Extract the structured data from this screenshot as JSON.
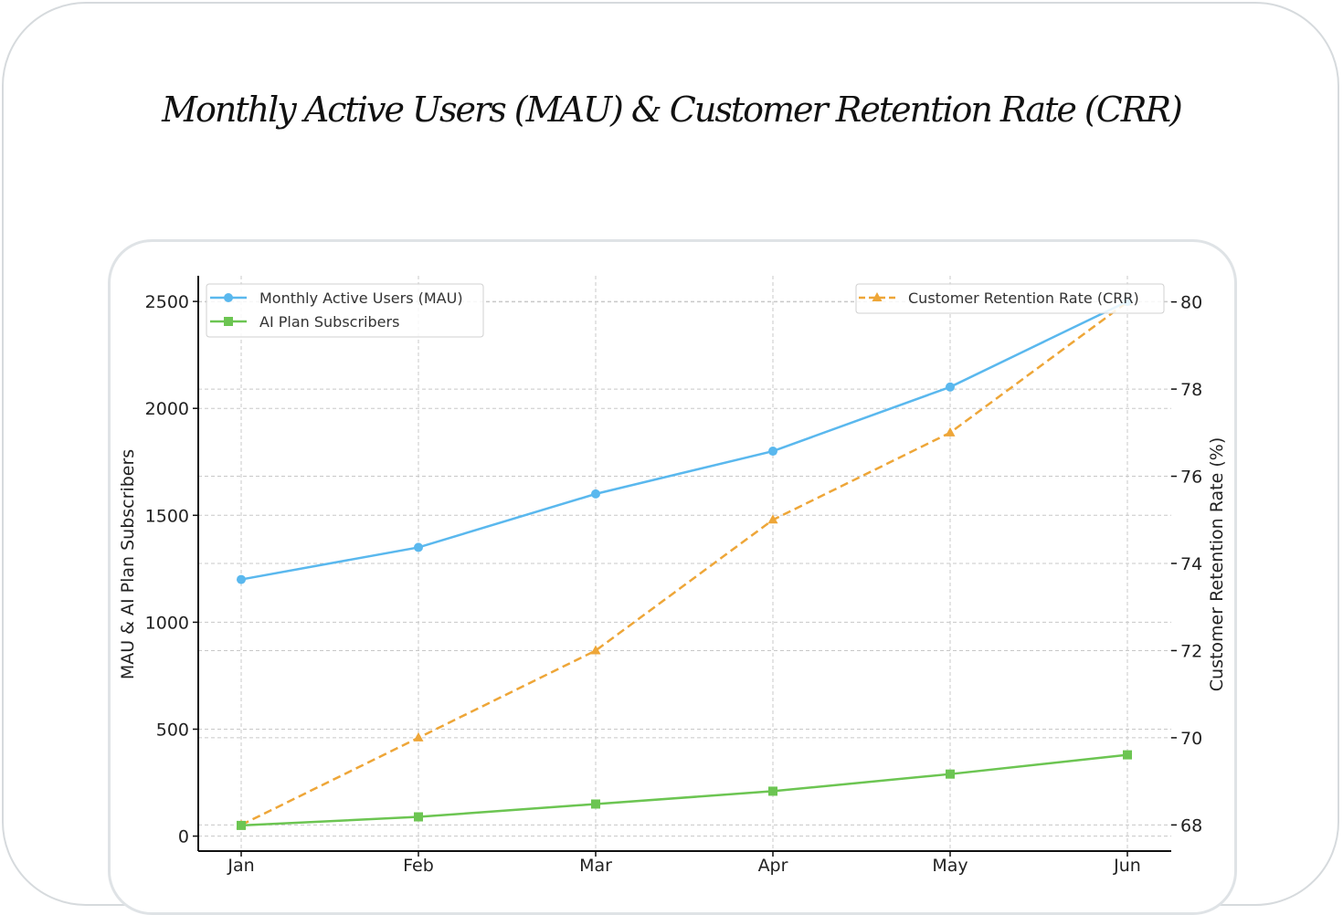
{
  "title": "Monthly Active Users (MAU) & Customer Retention Rate (CRR)",
  "chart_data": {
    "type": "line",
    "categories": [
      "Jan",
      "Feb",
      "Mar",
      "Apr",
      "May",
      "Jun"
    ],
    "series": [
      {
        "name": "Monthly Active Users (MAU)",
        "axis": "left",
        "values": [
          1200,
          1350,
          1600,
          1800,
          2100,
          2500
        ],
        "color": "#5ab8ee",
        "marker": "circle",
        "style": "solid"
      },
      {
        "name": "AI Plan Subscribers",
        "axis": "left",
        "values": [
          50,
          90,
          150,
          210,
          290,
          380
        ],
        "color": "#6cc552",
        "marker": "square",
        "style": "solid"
      },
      {
        "name": "Customer Retention Rate (CRR)",
        "axis": "right",
        "values": [
          68,
          70,
          72,
          75,
          77,
          80
        ],
        "color": "#eea638",
        "marker": "triangle",
        "style": "dashed"
      }
    ],
    "ylabel": "MAU & AI Plan Subscribers",
    "y2label": "Customer Retention Rate (%)",
    "ylim": [
      -70,
      2620
    ],
    "y2lim": [
      67.4,
      80.6
    ],
    "yticks": [
      0,
      500,
      1000,
      1500,
      2000,
      2500
    ],
    "y2ticks": [
      68,
      70,
      72,
      74,
      76,
      78,
      80
    ],
    "grid": true,
    "legend_left": "top-left",
    "legend_right": "top-right"
  }
}
